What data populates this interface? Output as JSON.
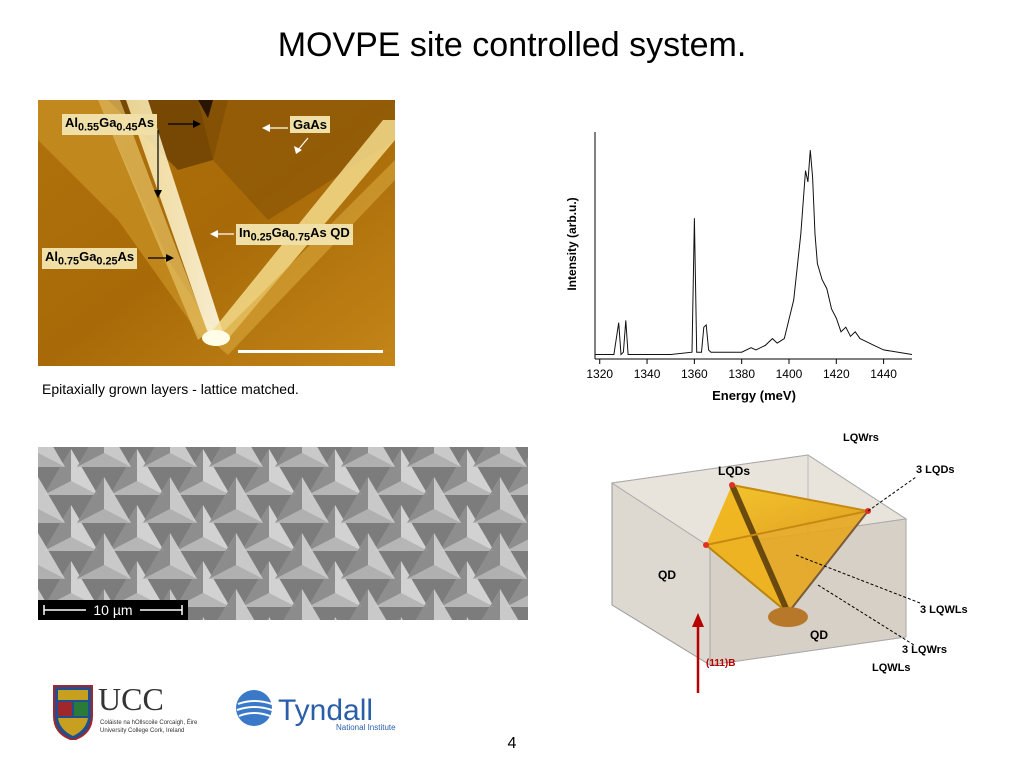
{
  "slide": {
    "title": "MOVPE site controlled system.",
    "caption": "Epitaxially grown layers - lattice matched.",
    "page_number": "4"
  },
  "afm_image": {
    "labels": {
      "al055": {
        "base": "Al",
        "sub1": "0.55",
        "mid": "Ga",
        "sub2": "0.45",
        "end": "As"
      },
      "gaas": "GaAs",
      "ingaas": {
        "base": "In",
        "sub1": "0.25",
        "mid": "Ga",
        "sub2": "0.75",
        "end": "As QD"
      },
      "al075": {
        "base": "Al",
        "sub1": "0.75",
        "mid": "Ga",
        "sub2": "0.25",
        "end": "As"
      }
    }
  },
  "sem_image": {
    "scale_bar": "10 µm"
  },
  "chart_data": {
    "type": "line",
    "xlabel": "Energy (meV)",
    "ylabel": "Intensity (arb.u.)",
    "xlim": [
      1318,
      1452
    ],
    "xticks": [
      1320,
      1340,
      1360,
      1380,
      1400,
      1420,
      1440
    ],
    "grid": false,
    "series": [
      {
        "x": [
          1318,
          1326,
          1328,
          1329,
          1330,
          1331,
          1332,
          1333,
          1334,
          1336,
          1350,
          1359,
          1360,
          1361,
          1362,
          1363,
          1364,
          1365,
          1366,
          1367,
          1370,
          1380,
          1384,
          1386,
          1390,
          1393,
          1395,
          1398,
          1402,
          1405,
          1407,
          1408,
          1409,
          1410,
          1411,
          1412,
          1414,
          1416,
          1418,
          1420,
          1422,
          1424,
          1426,
          1428,
          1430,
          1432,
          1436,
          1440,
          1452
        ],
        "y": [
          0.02,
          0.02,
          0.16,
          0.02,
          0.03,
          0.17,
          0.02,
          0.02,
          0.02,
          0.02,
          0.02,
          0.03,
          0.62,
          0.03,
          0.03,
          0.03,
          0.14,
          0.15,
          0.04,
          0.03,
          0.03,
          0.03,
          0.05,
          0.04,
          0.06,
          0.09,
          0.07,
          0.09,
          0.26,
          0.55,
          0.83,
          0.78,
          0.92,
          0.8,
          0.55,
          0.42,
          0.35,
          0.31,
          0.22,
          0.18,
          0.12,
          0.14,
          0.1,
          0.12,
          0.09,
          0.08,
          0.06,
          0.04,
          0.02
        ]
      }
    ]
  },
  "diagram": {
    "labels": {
      "lqwrs_top": "LQWrs",
      "lqds": "LQDs",
      "three_lqds": "3 LQDs",
      "qd_left": "QD",
      "three_lqwls": "3 LQWLs",
      "qd_bottom": "QD",
      "three_lqwrs": "3 LQWrs",
      "lqwls": "LQWLs",
      "direction": "(111)B"
    }
  },
  "logos": {
    "ucc": {
      "wordmark": "UCC",
      "line1": "Coláiste na hOllscoile Corcaigh, Éire",
      "line2": "University College Cork, Ireland"
    },
    "tyndall": {
      "wordmark": "Tyndall",
      "subtitle": "National Institute"
    }
  }
}
